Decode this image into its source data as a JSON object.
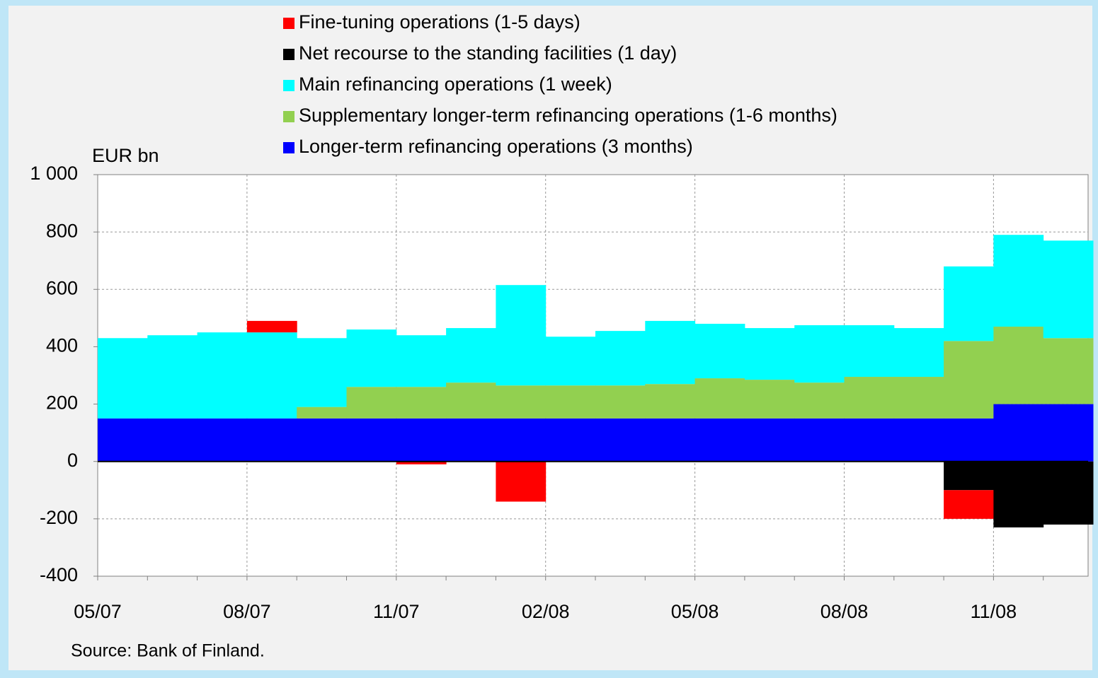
{
  "chart_data": {
    "type": "stacked-bar",
    "y_label": "EUR bn",
    "source": "Source: Bank of Finland.",
    "categories": [
      "05/07",
      null,
      null,
      "08/07",
      null,
      null,
      "11/07",
      null,
      null,
      "02/08",
      null,
      null,
      "05/08",
      null,
      null,
      "08/08",
      null,
      null,
      "11/08",
      null
    ],
    "series": [
      {
        "name": "Fine-tuning operations (1-5 days)",
        "color": "#ff0000",
        "values": [
          0,
          0,
          0,
          40,
          0,
          0,
          -10,
          0,
          -140,
          0,
          0,
          0,
          0,
          0,
          0,
          0,
          0,
          -100,
          0,
          0
        ]
      },
      {
        "name": "Net recourse to the standing facilities (1 day)",
        "color": "#000000",
        "values": [
          0,
          0,
          0,
          0,
          0,
          0,
          0,
          0,
          0,
          0,
          0,
          0,
          0,
          0,
          0,
          0,
          0,
          -100,
          -230,
          -220
        ]
      },
      {
        "name": "Main refinancing operations (1 week)",
        "color": "#00ffff",
        "values": [
          280,
          290,
          300,
          300,
          240,
          200,
          180,
          190,
          350,
          170,
          190,
          220,
          190,
          180,
          200,
          180,
          170,
          260,
          320,
          340
        ]
      },
      {
        "name": "Supplementary longer-term refinancing operations (1-6 months)",
        "color": "#92d050",
        "values": [
          0,
          0,
          0,
          0,
          40,
          110,
          110,
          125,
          115,
          115,
          115,
          120,
          140,
          135,
          125,
          145,
          145,
          270,
          270,
          230
        ]
      },
      {
        "name": "Longer-term refinancing operations (3 months)",
        "color": "#0000ff",
        "values": [
          150,
          150,
          150,
          150,
          150,
          150,
          150,
          150,
          150,
          150,
          150,
          150,
          150,
          150,
          150,
          150,
          150,
          150,
          200,
          200
        ]
      }
    ],
    "ylim": [
      -400,
      1000
    ],
    "yticks": [
      -400,
      -200,
      0,
      200,
      400,
      600,
      800,
      {
        "value": 1000,
        "label": "1 000"
      }
    ],
    "grid": true
  }
}
